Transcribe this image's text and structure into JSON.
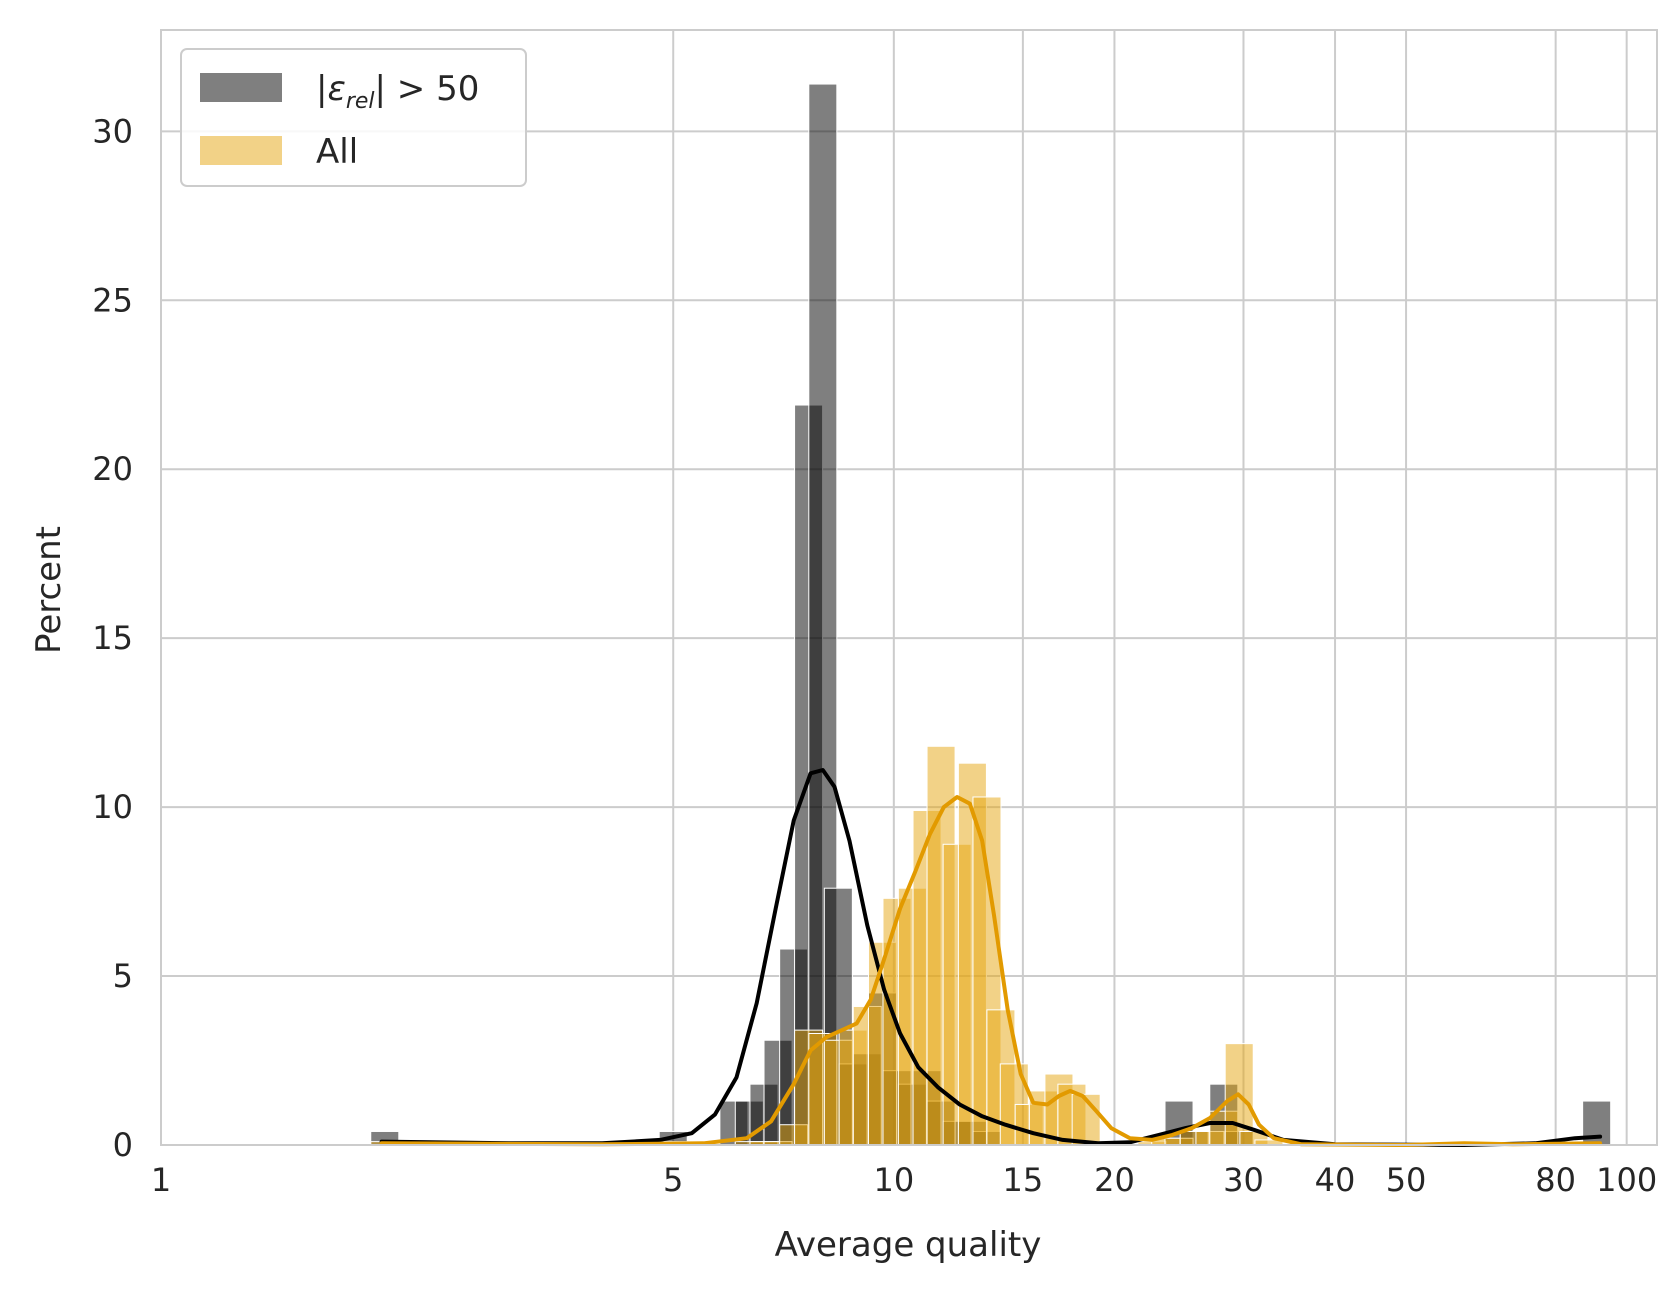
{
  "chart_data": {
    "type": "bar",
    "xscale": "log",
    "xlabel": "Average quality",
    "ylabel": "Percent",
    "xlim": [
      1,
      110
    ],
    "ylim": [
      0,
      33
    ],
    "xticks": [
      1,
      5,
      10,
      15,
      20,
      30,
      40,
      50,
      80,
      100
    ],
    "xtick_labels": [
      "1",
      "5",
      "10",
      "15",
      "20",
      "30",
      "40",
      "50",
      "80",
      "100"
    ],
    "yticks": [
      0,
      5,
      10,
      15,
      20,
      25,
      30
    ],
    "ytick_labels": [
      "0",
      "5",
      "10",
      "15",
      "20",
      "25",
      "30"
    ],
    "grid": true,
    "legend": {
      "position": "top-left"
    },
    "series": [
      {
        "name": "|ε_rel| > 50",
        "name_parts": {
          "pre": "|ε",
          "sub": "rel",
          "post": "| > 50"
        },
        "color": "#000000",
        "opacity": 0.5,
        "bars": [
          [
            2.02,
            0.4
          ],
          [
            5.0,
            0.4
          ],
          [
            6.05,
            1.3
          ],
          [
            6.35,
            1.3
          ],
          [
            6.65,
            1.8
          ],
          [
            6.95,
            3.1
          ],
          [
            7.3,
            5.8
          ],
          [
            7.65,
            21.9
          ],
          [
            8.0,
            31.4
          ],
          [
            8.4,
            7.6
          ],
          [
            8.8,
            2.4
          ],
          [
            9.2,
            2.7
          ],
          [
            9.65,
            4.5
          ],
          [
            10.1,
            2.2
          ],
          [
            10.6,
            1.8
          ],
          [
            11.1,
            2.2
          ],
          [
            11.6,
            1.3
          ],
          [
            12.2,
            0.7
          ],
          [
            12.8,
            0.7
          ],
          [
            13.4,
            0.4
          ],
          [
            24.5,
            1.3
          ],
          [
            25.7,
            0.4
          ],
          [
            28.2,
            1.8
          ],
          [
            29.6,
            0.4
          ],
          [
            91.0,
            1.3
          ]
        ],
        "kde": [
          [
            2.0,
            0.1
          ],
          [
            3.0,
            0.05
          ],
          [
            4.0,
            0.05
          ],
          [
            4.8,
            0.15
          ],
          [
            5.3,
            0.35
          ],
          [
            5.7,
            0.9
          ],
          [
            6.1,
            2.0
          ],
          [
            6.5,
            4.2
          ],
          [
            6.9,
            7.0
          ],
          [
            7.3,
            9.6
          ],
          [
            7.7,
            11.0
          ],
          [
            8.0,
            11.1
          ],
          [
            8.3,
            10.6
          ],
          [
            8.7,
            9.0
          ],
          [
            9.2,
            6.5
          ],
          [
            9.7,
            4.6
          ],
          [
            10.2,
            3.3
          ],
          [
            10.8,
            2.3
          ],
          [
            11.5,
            1.7
          ],
          [
            12.3,
            1.2
          ],
          [
            13.2,
            0.85
          ],
          [
            14.2,
            0.6
          ],
          [
            15.5,
            0.35
          ],
          [
            17.0,
            0.15
          ],
          [
            19.0,
            0.05
          ],
          [
            21.0,
            0.08
          ],
          [
            23.0,
            0.3
          ],
          [
            25.0,
            0.5
          ],
          [
            27.0,
            0.65
          ],
          [
            29.0,
            0.65
          ],
          [
            31.0,
            0.45
          ],
          [
            34.0,
            0.15
          ],
          [
            40.0,
            0.02
          ],
          [
            60.0,
            0.0
          ],
          [
            75.0,
            0.05
          ],
          [
            85.0,
            0.2
          ],
          [
            92.0,
            0.25
          ]
        ]
      },
      {
        "name": "All",
        "color": "#e6a50f",
        "opacity": 0.5,
        "bars": [
          [
            2.02,
            0.1
          ],
          [
            5.0,
            0.1
          ],
          [
            6.35,
            0.1
          ],
          [
            6.65,
            0.1
          ],
          [
            6.95,
            0.1
          ],
          [
            7.3,
            0.6
          ],
          [
            7.65,
            3.4
          ],
          [
            8.0,
            3.3
          ],
          [
            8.4,
            3.1
          ],
          [
            8.8,
            3.4
          ],
          [
            9.2,
            4.1
          ],
          [
            9.65,
            6.0
          ],
          [
            10.1,
            7.3
          ],
          [
            10.6,
            7.6
          ],
          [
            11.1,
            9.9
          ],
          [
            11.6,
            11.8
          ],
          [
            12.2,
            8.9
          ],
          [
            12.8,
            11.3
          ],
          [
            13.4,
            10.3
          ],
          [
            14.0,
            4.0
          ],
          [
            14.6,
            2.4
          ],
          [
            15.3,
            1.2
          ],
          [
            16.0,
            1.6
          ],
          [
            16.8,
            2.1
          ],
          [
            17.5,
            1.8
          ],
          [
            18.3,
            1.5
          ],
          [
            22.5,
            0.1
          ],
          [
            23.5,
            0.2
          ],
          [
            24.5,
            0.2
          ],
          [
            25.7,
            0.4
          ],
          [
            27.0,
            0.4
          ],
          [
            28.2,
            1.0
          ],
          [
            29.6,
            3.0
          ],
          [
            31.0,
            0.4
          ],
          [
            32.5,
            0.15
          ],
          [
            60.0,
            0.05
          ]
        ],
        "kde": [
          [
            2.0,
            0.05
          ],
          [
            4.0,
            0.02
          ],
          [
            5.5,
            0.05
          ],
          [
            6.3,
            0.2
          ],
          [
            6.8,
            0.7
          ],
          [
            7.3,
            1.8
          ],
          [
            7.7,
            2.8
          ],
          [
            8.1,
            3.2
          ],
          [
            8.5,
            3.4
          ],
          [
            8.9,
            3.6
          ],
          [
            9.3,
            4.3
          ],
          [
            9.7,
            5.5
          ],
          [
            10.2,
            7.0
          ],
          [
            10.7,
            8.1
          ],
          [
            11.2,
            9.2
          ],
          [
            11.7,
            10.0
          ],
          [
            12.2,
            10.3
          ],
          [
            12.7,
            10.1
          ],
          [
            13.2,
            9.0
          ],
          [
            13.7,
            6.8
          ],
          [
            14.3,
            4.0
          ],
          [
            14.9,
            2.1
          ],
          [
            15.5,
            1.25
          ],
          [
            16.2,
            1.2
          ],
          [
            16.8,
            1.45
          ],
          [
            17.4,
            1.6
          ],
          [
            18.1,
            1.45
          ],
          [
            18.9,
            1.0
          ],
          [
            19.8,
            0.5
          ],
          [
            21.0,
            0.2
          ],
          [
            22.5,
            0.15
          ],
          [
            24.0,
            0.3
          ],
          [
            25.5,
            0.5
          ],
          [
            27.0,
            0.8
          ],
          [
            28.5,
            1.3
          ],
          [
            29.5,
            1.5
          ],
          [
            30.5,
            1.2
          ],
          [
            31.5,
            0.6
          ],
          [
            33.0,
            0.2
          ],
          [
            36.0,
            0.02
          ],
          [
            50.0,
            0.0
          ],
          [
            60.0,
            0.05
          ],
          [
            70.0,
            0.02
          ],
          [
            92.0,
            0.05
          ]
        ]
      }
    ]
  }
}
